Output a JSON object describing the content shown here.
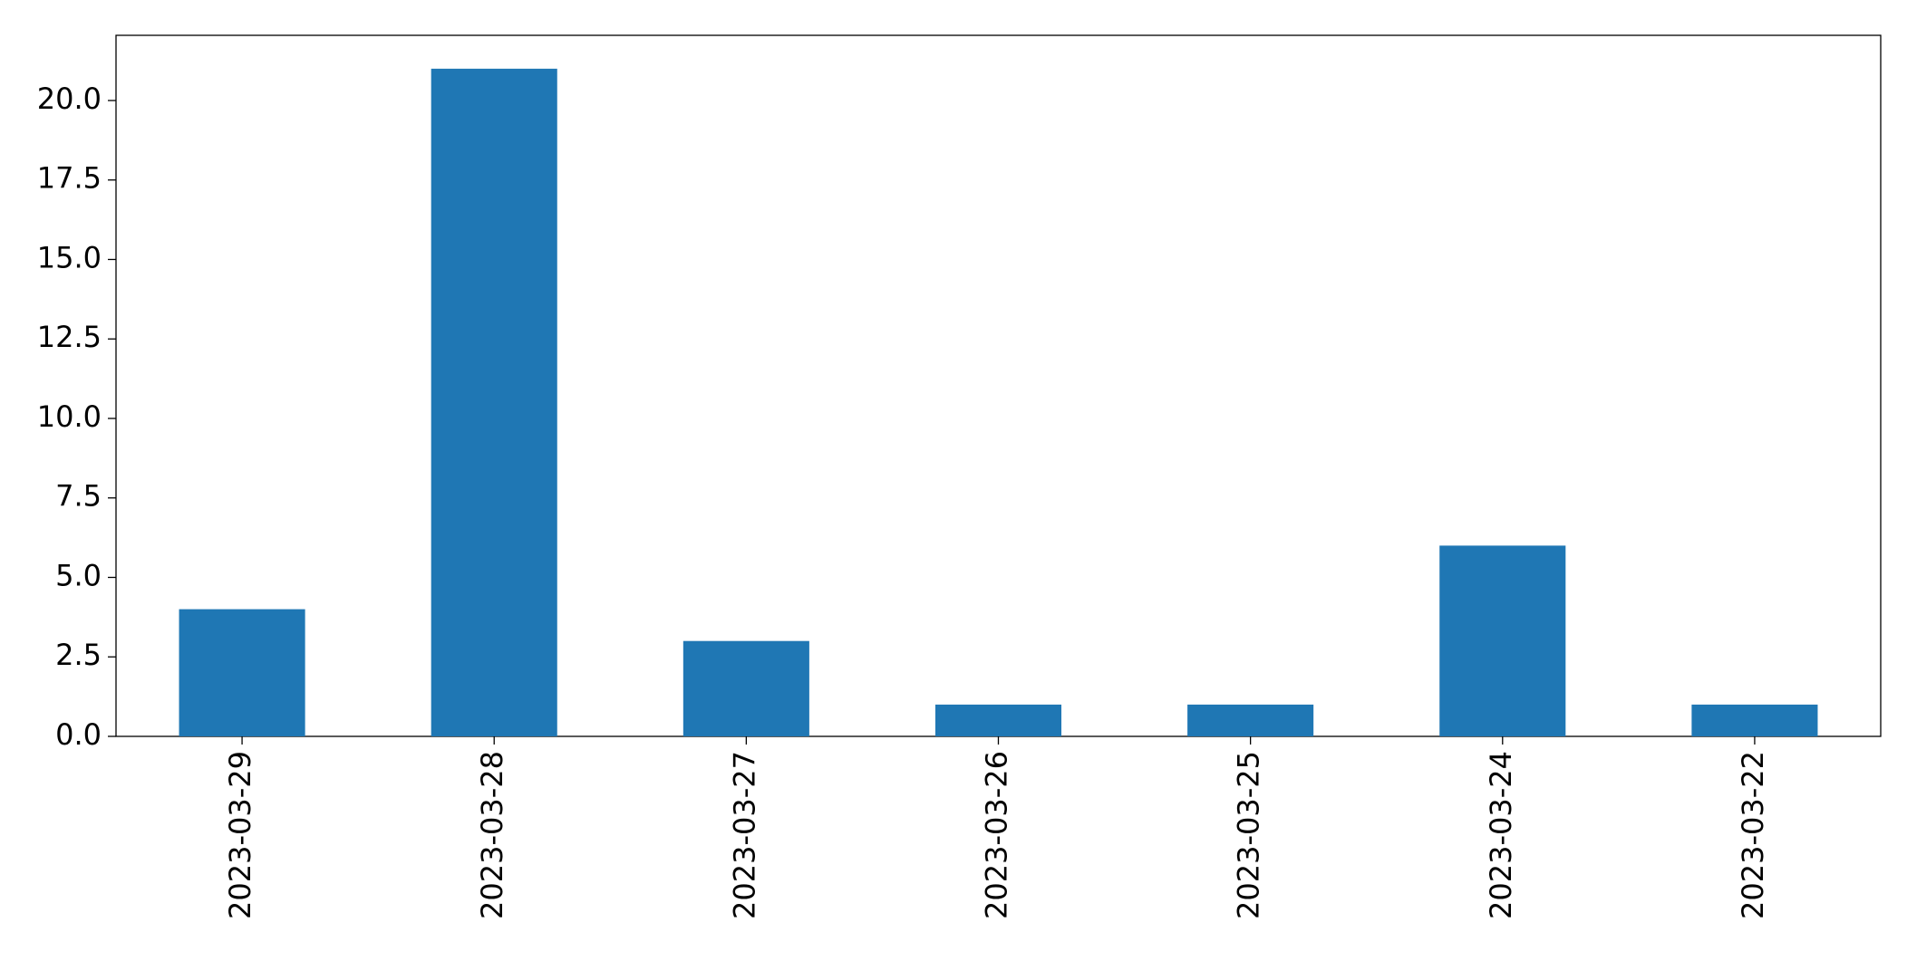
{
  "chart_data": {
    "type": "bar",
    "categories": [
      "2023-03-29",
      "2023-03-28",
      "2023-03-27",
      "2023-03-26",
      "2023-03-25",
      "2023-03-24",
      "2023-03-22"
    ],
    "values": [
      4,
      21,
      3,
      1,
      1,
      6,
      1
    ],
    "color": "#1f77b4",
    "ylim": [
      0,
      22.05
    ],
    "yticks": [
      {
        "value": 0,
        "label": "0.0"
      },
      2.5,
      {
        "value": 5,
        "label": "5.0"
      },
      7.5,
      {
        "value": 10,
        "label": "10.0"
      },
      12.5,
      {
        "value": 15,
        "label": "15.0"
      },
      17.5,
      {
        "value": 20,
        "label": "20.0"
      }
    ],
    "grid": false
  }
}
